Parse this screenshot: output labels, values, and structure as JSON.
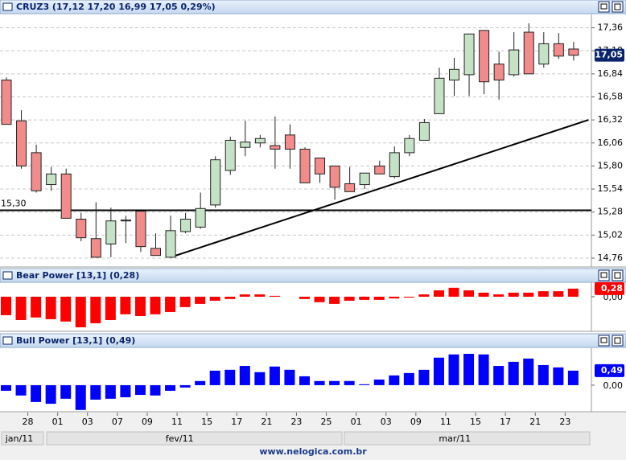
{
  "chart_data": [
    {
      "type": "candlestick",
      "title": "CRUZ3 (17,12  17,20  16,99  17,05  0,29%)",
      "categories": [
        null,
        "28",
        null,
        "01",
        null,
        "03",
        null,
        "07",
        null,
        "09",
        null,
        "11",
        null,
        "15",
        null,
        "17",
        null,
        "21",
        null,
        "23",
        null,
        "25",
        null,
        "01",
        null,
        "03",
        null,
        "09",
        null,
        "11",
        null,
        "15",
        null,
        "17",
        null,
        "21",
        null,
        "23",
        null
      ],
      "open": [
        16.77,
        16.31,
        15.95,
        15.59,
        15.71,
        15.2,
        14.98,
        14.92,
        15.19,
        15.29,
        14.87,
        14.77,
        15.06,
        15.11,
        15.36,
        15.75,
        16.01,
        16.06,
        16.03,
        16.15,
        15.99,
        15.89,
        15.8,
        15.6,
        15.59,
        15.8,
        15.68,
        15.95,
        16.09,
        16.39,
        16.77,
        16.83,
        17.33,
        16.95,
        16.83,
        17.31,
        16.95,
        17.18,
        17.12
      ],
      "high": [
        16.8,
        16.43,
        16.04,
        15.79,
        15.77,
        15.27,
        15.39,
        15.33,
        15.24,
        15.29,
        15.04,
        15.24,
        15.27,
        15.5,
        15.91,
        16.13,
        16.31,
        16.15,
        16.36,
        16.27,
        16.01,
        15.89,
        15.8,
        15.79,
        15.72,
        15.86,
        16.02,
        16.15,
        16.33,
        16.91,
        17.02,
        17.29,
        17.33,
        17.09,
        17.31,
        17.41,
        17.31,
        17.3,
        17.2
      ],
      "low": [
        16.27,
        15.77,
        15.5,
        15.52,
        15.21,
        14.95,
        14.77,
        14.77,
        14.93,
        14.83,
        14.79,
        14.77,
        15.04,
        15.09,
        15.33,
        15.7,
        15.91,
        16.01,
        15.77,
        15.77,
        15.61,
        15.61,
        15.42,
        15.51,
        15.54,
        15.71,
        15.66,
        15.91,
        16.09,
        16.39,
        16.59,
        16.59,
        16.61,
        16.55,
        16.81,
        16.84,
        16.91,
        17.01,
        16.99
      ],
      "close": [
        16.27,
        15.8,
        15.52,
        15.71,
        15.21,
        14.99,
        14.77,
        15.18,
        15.18,
        14.89,
        14.79,
        15.07,
        15.2,
        15.32,
        15.87,
        16.09,
        16.07,
        16.11,
        15.99,
        15.99,
        15.61,
        15.71,
        15.56,
        15.51,
        15.72,
        15.71,
        15.95,
        16.11,
        16.29,
        16.79,
        16.89,
        17.29,
        16.75,
        16.77,
        17.11,
        16.84,
        17.18,
        17.04,
        17.05
      ],
      "up_color": "#c6e2c6",
      "down_color": "#f28c8c",
      "ylim": [
        14.66,
        17.51
      ],
      "yticks": [
        {
          "value": 17.36,
          "label": "17,36"
        },
        {
          "value": 17.1,
          "label": "17,10"
        },
        {
          "value": 16.84,
          "label": "16,84"
        },
        {
          "value": 16.58,
          "label": "16,58"
        },
        {
          "value": 16.32,
          "label": "16,32"
        },
        {
          "value": 16.06,
          "label": "16,06"
        },
        {
          "value": 15.8,
          "label": "15,80"
        },
        {
          "value": 15.54,
          "label": "15,54"
        },
        {
          "value": 15.28,
          "label": "15,28"
        },
        {
          "value": 15.02,
          "label": "15,02"
        },
        {
          "value": 14.76,
          "label": "14,76"
        }
      ],
      "grid": true,
      "last_label": "17,05",
      "hline": {
        "value": 15.3,
        "label": "15,30"
      },
      "trendline": {
        "x": [
          11,
          39
        ],
        "y": [
          14.77,
          16.32
        ]
      }
    },
    {
      "type": "bar",
      "title": "Bear Power [13,1] (0,28)",
      "values": [
        -0.64,
        -0.81,
        -0.72,
        -0.78,
        -0.86,
        -1.06,
        -0.92,
        -0.81,
        -0.61,
        -0.67,
        -0.61,
        -0.53,
        -0.36,
        -0.25,
        -0.14,
        -0.08,
        0.08,
        0.08,
        0.03,
        0.0,
        -0.08,
        -0.19,
        -0.25,
        -0.14,
        -0.11,
        -0.11,
        -0.06,
        -0.03,
        0.08,
        0.22,
        0.31,
        0.22,
        0.14,
        0.08,
        0.14,
        0.14,
        0.19,
        0.19,
        0.28
      ],
      "color": "#ff0000",
      "ylim": [
        -1.2,
        0.5
      ],
      "yticks": [
        {
          "value": 0,
          "label": "0,00"
        }
      ],
      "last_label": "0,28"
    },
    {
      "type": "bar",
      "title": "Bull Power [13,1] (0,49)",
      "values": [
        -0.19,
        -0.35,
        -0.57,
        -0.63,
        -0.46,
        -0.84,
        -0.49,
        -0.46,
        -0.41,
        -0.33,
        -0.35,
        -0.19,
        -0.08,
        0.14,
        0.49,
        0.52,
        0.65,
        0.44,
        0.63,
        0.52,
        0.3,
        0.14,
        0.14,
        0.14,
        0.03,
        0.19,
        0.33,
        0.41,
        0.52,
        0.93,
        1.04,
        1.06,
        1.04,
        0.65,
        0.79,
        0.9,
        0.68,
        0.6,
        0.49
      ],
      "color": "#0000ff",
      "ylim": [
        -0.9,
        1.25
      ],
      "yticks": [
        {
          "value": 0,
          "label": "0,00"
        }
      ],
      "last_label": "0,49"
    }
  ],
  "months": [
    "jan/11",
    "fev/11",
    "mar/11"
  ],
  "footer": "www.nelogica.com.br"
}
